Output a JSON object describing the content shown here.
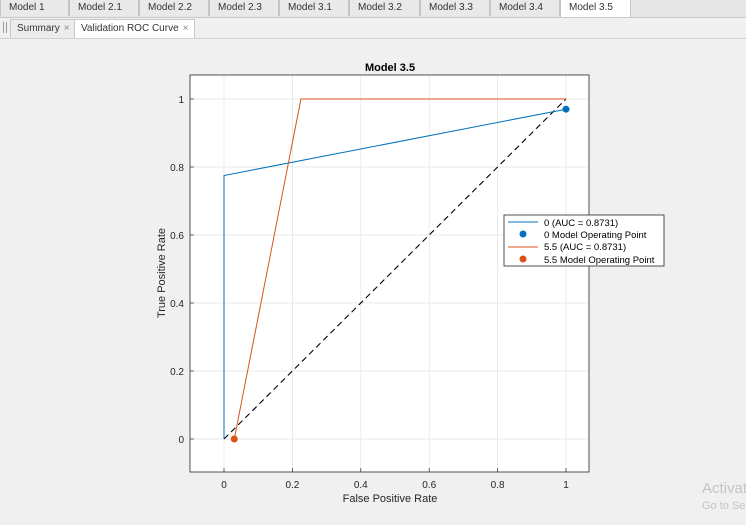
{
  "model_tabs": [
    {
      "label": "Model 1",
      "active": false
    },
    {
      "label": "Model 2.1",
      "active": false
    },
    {
      "label": "Model 2.2",
      "active": false
    },
    {
      "label": "Model 2.3",
      "active": false
    },
    {
      "label": "Model 3.1",
      "active": false
    },
    {
      "label": "Model 3.2",
      "active": false
    },
    {
      "label": "Model 3.3",
      "active": false
    },
    {
      "label": "Model 3.4",
      "active": false
    },
    {
      "label": "Model 3.5",
      "active": true
    }
  ],
  "doc_tabs": [
    {
      "label": "Summary",
      "close": "×",
      "active": false
    },
    {
      "label": "Validation ROC Curve",
      "close": "×",
      "active": true
    }
  ],
  "watermark": {
    "line1": "Activat",
    "line2": "Go to Se"
  },
  "chart_data": {
    "type": "line",
    "title": "Model 3.5",
    "xlabel": "False Positive Rate",
    "ylabel": "True Positive Rate",
    "xlim": [
      -0.1,
      1.07
    ],
    "ylim": [
      -0.1,
      1.07
    ],
    "xticks": [
      0,
      0.2,
      0.4,
      0.6,
      0.8,
      1
    ],
    "yticks": [
      0,
      0.2,
      0.4,
      0.6,
      0.8,
      1
    ],
    "xtick_labels": [
      "0",
      "0.2",
      "0.4",
      "0.6",
      "0.8",
      "1"
    ],
    "ytick_labels": [
      "0",
      "0.2",
      "0.4",
      "0.6",
      "0.8",
      "1"
    ],
    "grid": true,
    "legend_position": "right",
    "series": [
      {
        "name": "0 (AUC = 0.8731)",
        "kind": "line",
        "color": "#0072bd",
        "x": [
          0,
          0,
          1
        ],
        "y": [
          0,
          0.775,
          0.97
        ]
      },
      {
        "name": "0 Model Operating Point",
        "kind": "marker",
        "color": "#0072bd",
        "x": [
          1
        ],
        "y": [
          0.97
        ]
      },
      {
        "name": "5.5 (AUC = 0.8731)",
        "kind": "line",
        "color": "#d95319",
        "x": [
          0.03,
          0.225,
          1
        ],
        "y": [
          0,
          1,
          1
        ]
      },
      {
        "name": "5.5 Model Operating Point",
        "kind": "marker",
        "color": "#d95319",
        "x": [
          0.03
        ],
        "y": [
          0
        ]
      }
    ],
    "diagonal": {
      "x": [
        0,
        1
      ],
      "y": [
        0,
        1
      ],
      "style": "dashed",
      "color": "#000000"
    }
  }
}
